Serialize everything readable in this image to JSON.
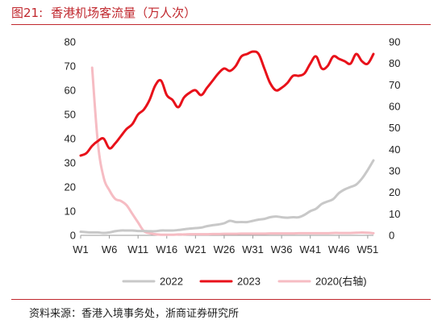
{
  "figure": {
    "number": "图21:",
    "title": "香港机场客流量（万人次）",
    "source": "资料来源：香港入境事务处，浙商证券研究所"
  },
  "colors": {
    "title": "#c0272d",
    "s2022": "#c8c8c8",
    "s2023": "#e8111a",
    "s2020": "#f6bcc3",
    "axis": "#9a9a9a"
  },
  "chart_data": {
    "type": "line",
    "title": "香港机场客流量（万人次）",
    "xlabel": "",
    "ylabel": "",
    "xlim": [
      1,
      52
    ],
    "x_tick_labels": [
      {
        "x": 1,
        "label": "W1"
      },
      {
        "x": 6,
        "label": "W6"
      },
      {
        "x": 11,
        "label": "W11"
      },
      {
        "x": 16,
        "label": "W16"
      },
      {
        "x": 21,
        "label": "W21"
      },
      {
        "x": 26,
        "label": "W26"
      },
      {
        "x": 31,
        "label": "W31"
      },
      {
        "x": 36,
        "label": "W36"
      },
      {
        "x": 41,
        "label": "W41"
      },
      {
        "x": 46,
        "label": "W46"
      },
      {
        "x": 51,
        "label": "W51"
      }
    ],
    "y_left": {
      "min": 0,
      "max": 80,
      "ticks": [
        0,
        10,
        20,
        30,
        40,
        50,
        60,
        70,
        80
      ]
    },
    "y_right": {
      "min": 0,
      "max": 90,
      "ticks": [
        0,
        10,
        20,
        30,
        40,
        50,
        60,
        70,
        80,
        90
      ]
    },
    "grid": false,
    "legend_position": "bottom",
    "series": [
      {
        "name": "2022",
        "axis": "left",
        "color": "#c8c8c8",
        "x": [
          1,
          2,
          3,
          4,
          5,
          6,
          7,
          8,
          9,
          10,
          11,
          12,
          13,
          14,
          15,
          16,
          17,
          18,
          19,
          20,
          21,
          22,
          23,
          24,
          25,
          26,
          27,
          28,
          29,
          30,
          31,
          32,
          33,
          34,
          35,
          36,
          37,
          38,
          39,
          40,
          41,
          42,
          43,
          44,
          45,
          46,
          47,
          48,
          49,
          50,
          51,
          52
        ],
        "values": [
          1.5,
          1.3,
          1.2,
          1.2,
          1.0,
          1.2,
          1.7,
          2.0,
          2.0,
          2.0,
          1.8,
          1.8,
          1.7,
          1.7,
          2.0,
          2.0,
          2.0,
          2.2,
          2.5,
          2.8,
          3.0,
          3.2,
          3.8,
          4.2,
          4.5,
          5.0,
          6.0,
          5.5,
          5.5,
          5.5,
          6.0,
          6.5,
          6.8,
          7.5,
          7.8,
          7.5,
          7.3,
          7.5,
          7.5,
          8.5,
          10.0,
          11.0,
          13.0,
          14.0,
          15.0,
          17.5,
          19.0,
          20.0,
          21.0,
          23.5,
          27.0,
          31.0
        ]
      },
      {
        "name": "2023",
        "axis": "left",
        "color": "#e8111a",
        "x": [
          1,
          2,
          3,
          4,
          5,
          6,
          7,
          8,
          9,
          10,
          11,
          12,
          13,
          14,
          15,
          16,
          17,
          18,
          19,
          20,
          21,
          22,
          23,
          24,
          25,
          26,
          27,
          28,
          29,
          30,
          31,
          32,
          33,
          34,
          35,
          36,
          37,
          38,
          39,
          40,
          41,
          42,
          43,
          44,
          45,
          46,
          47,
          48,
          49,
          50,
          51,
          52
        ],
        "values": [
          33,
          34,
          37,
          39,
          40,
          36,
          38,
          41,
          44,
          46,
          50,
          52,
          56,
          62,
          64,
          58,
          56,
          53,
          57,
          59,
          60,
          58,
          61,
          64,
          67,
          69,
          68,
          70,
          74,
          75,
          76,
          75,
          69,
          63,
          60,
          61,
          63,
          66,
          66,
          67,
          71,
          74,
          69,
          70,
          74,
          73,
          72,
          71,
          75,
          72,
          71,
          75
        ]
      },
      {
        "name": "2020(右轴)",
        "axis": "right",
        "color": "#f6bcc3",
        "x": [
          3,
          4,
          5,
          6,
          7,
          8,
          9,
          10,
          11,
          12,
          13,
          14,
          15,
          16,
          17,
          18,
          19,
          20,
          21,
          22,
          23,
          24,
          25,
          26,
          27,
          28,
          29,
          30,
          31,
          32,
          33,
          34,
          35,
          36,
          37,
          38,
          39,
          40,
          41,
          42,
          43,
          44,
          45,
          46,
          47,
          48,
          49,
          50,
          51,
          52
        ],
        "values": [
          78,
          43,
          27,
          21,
          17,
          16,
          14,
          10,
          6,
          2,
          1,
          0.5,
          0.3,
          0.3,
          0.3,
          0.4,
          0.4,
          0.5,
          0.5,
          0.5,
          0.5,
          0.6,
          0.6,
          0.7,
          0.7,
          0.7,
          0.8,
          0.8,
          0.8,
          0.8,
          0.8,
          0.9,
          0.9,
          0.9,
          0.9,
          0.9,
          1.0,
          1.0,
          1.0,
          1.0,
          1.0,
          1.0,
          1.1,
          1.1,
          1.1,
          1.1,
          1.2,
          1.3,
          1.2,
          1.0
        ]
      }
    ]
  }
}
